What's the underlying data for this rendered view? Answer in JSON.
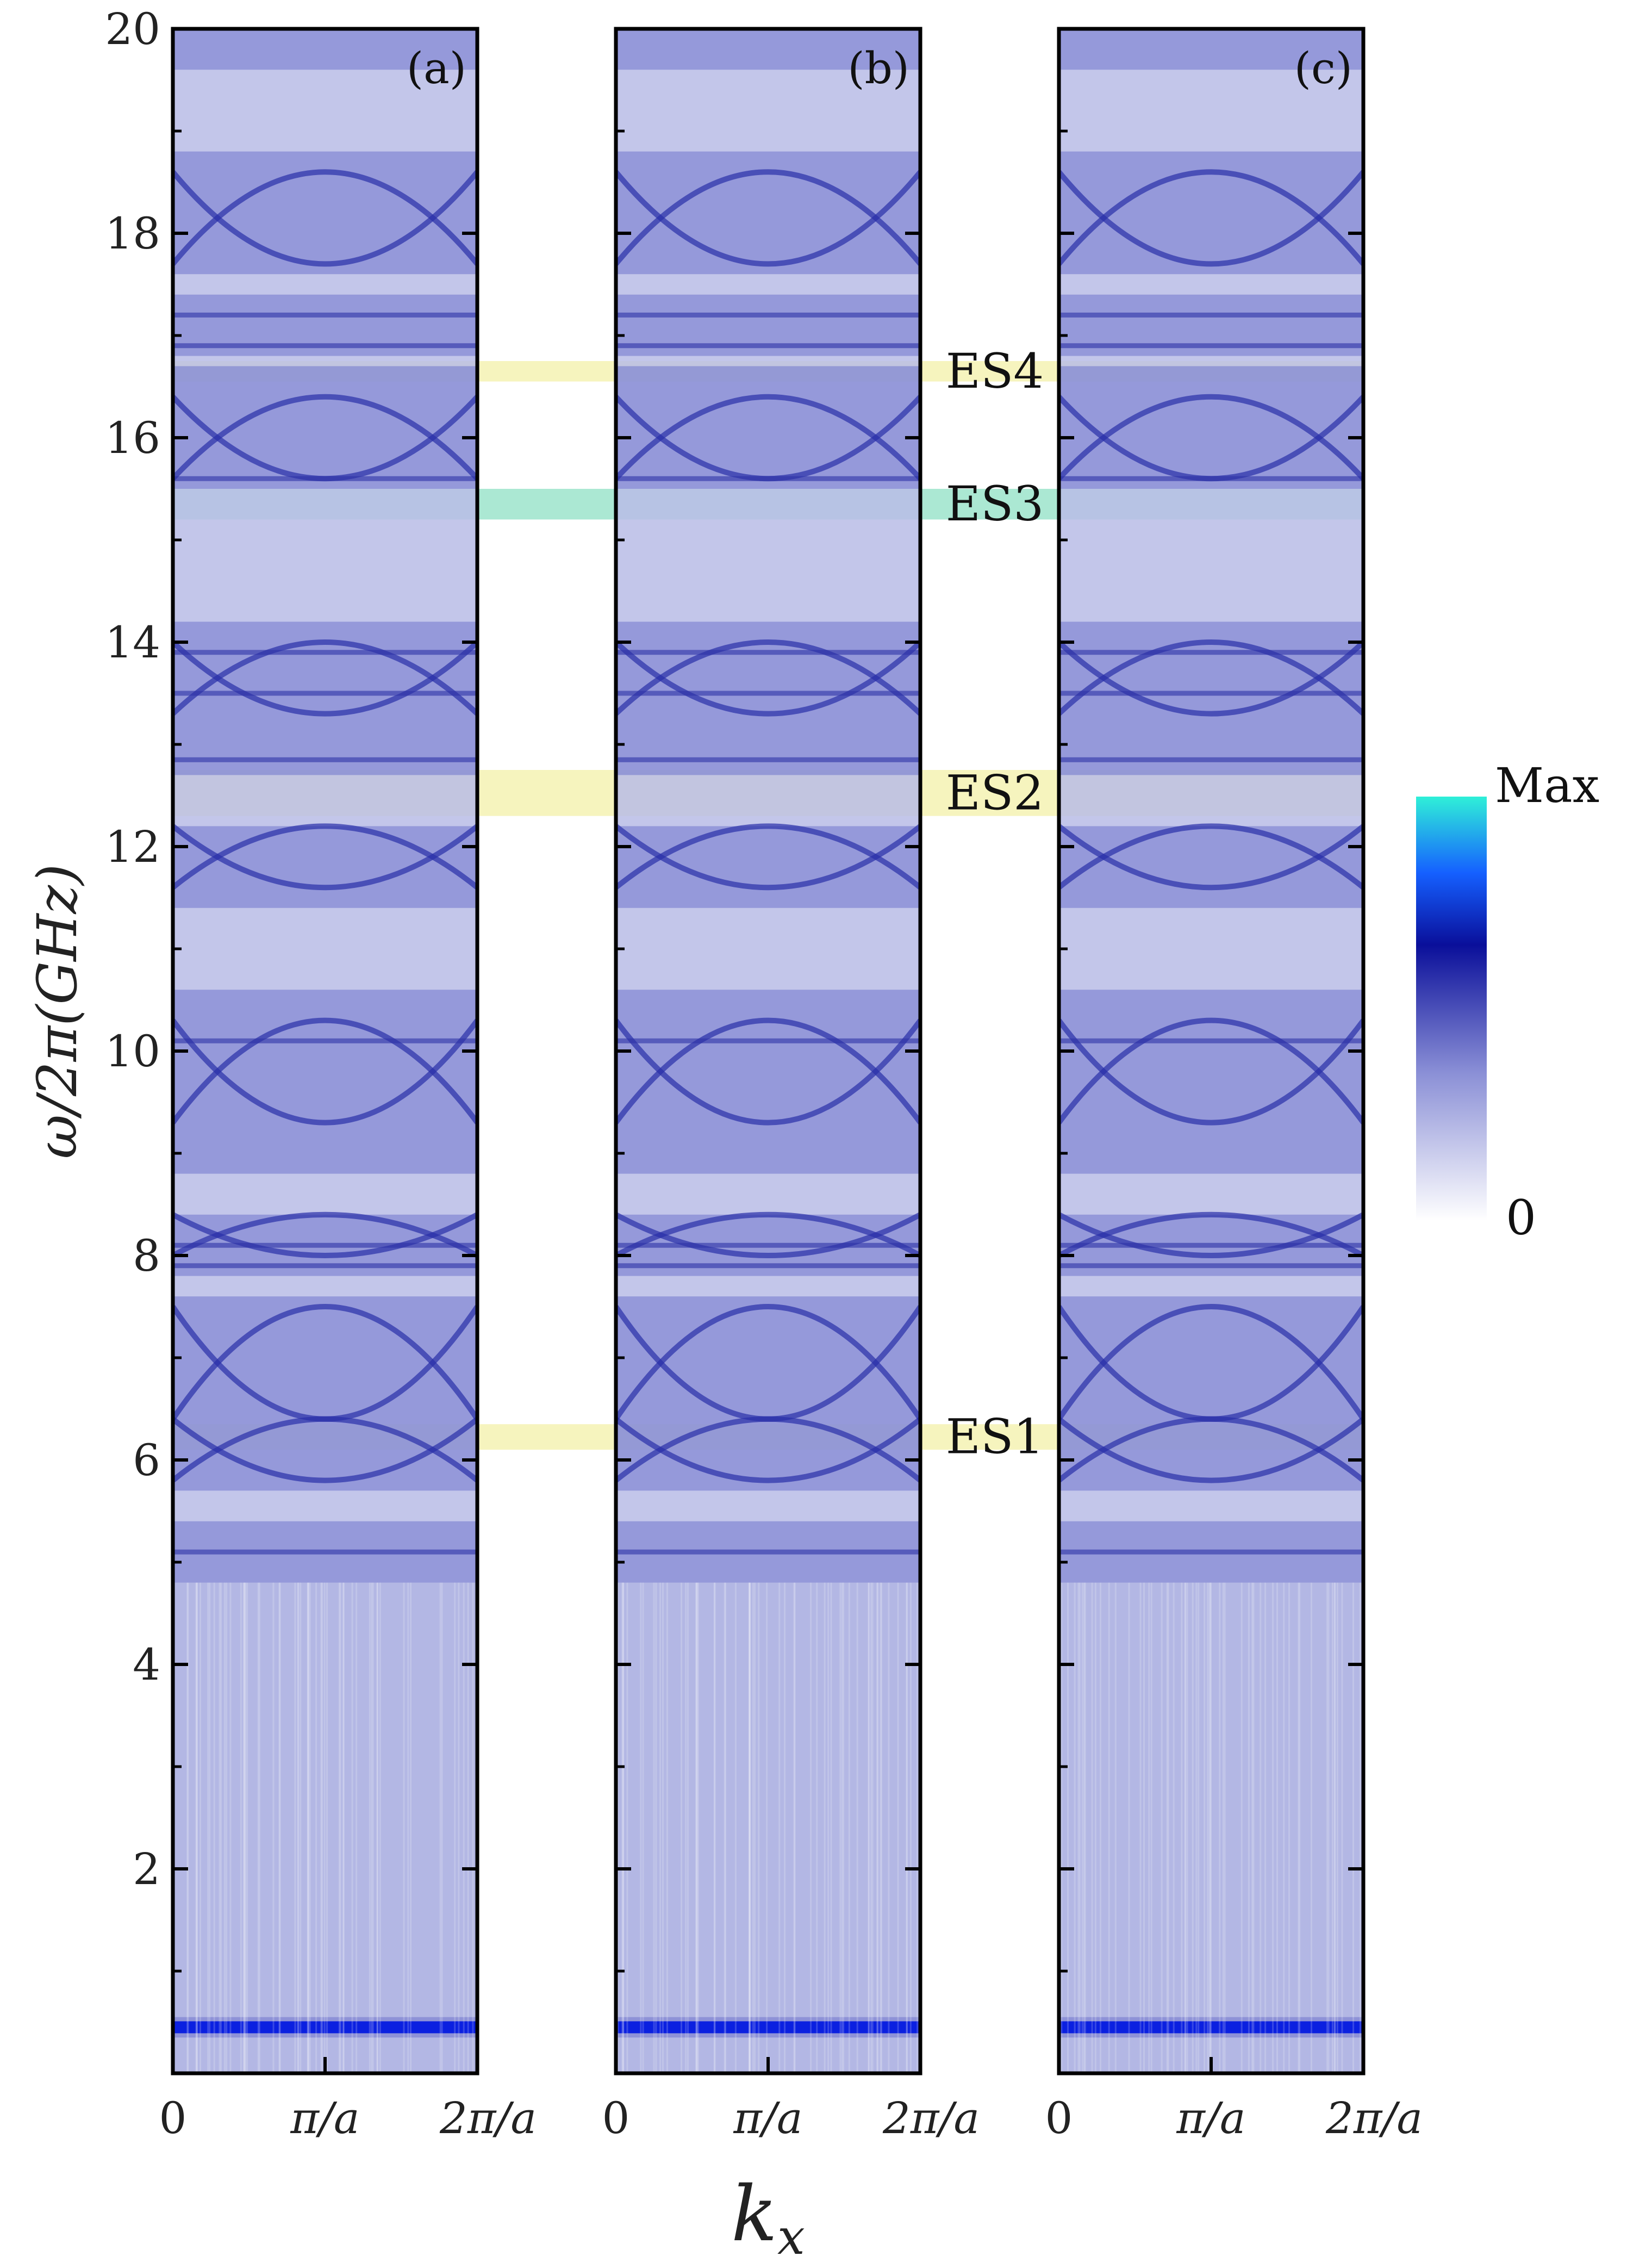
{
  "chart_data": {
    "type": "heatmap",
    "ylabel": "ω/2π(GHz)",
    "xlabel": "k_x",
    "ylim": [
      0,
      20
    ],
    "y_ticks": [
      "2",
      "4",
      "6",
      "8",
      "10",
      "12",
      "14",
      "16",
      "18",
      "20"
    ],
    "x_tick_labels": [
      "0",
      "π/a",
      "2π/a"
    ],
    "panels": [
      "(a)",
      "(b)",
      "(c)"
    ],
    "colorbar": {
      "max_label": "Max",
      "min_label": "0",
      "colors": [
        "#ffffff",
        "#8a8fd6",
        "#0a0f9a",
        "#1560ff",
        "#2ff0d8"
      ]
    },
    "highlight_bands": [
      {
        "label": "ES4",
        "range": [
          16.55,
          16.75
        ],
        "color": "#f3f0a8"
      },
      {
        "label": "ES3",
        "range": [
          15.2,
          15.5
        ],
        "color": "#8fe0c4"
      },
      {
        "label": "ES2",
        "range": [
          12.3,
          12.75
        ],
        "color": "#f3f0a8"
      },
      {
        "label": "ES1",
        "range": [
          6.1,
          6.35
        ],
        "color": "#f3f0a8"
      }
    ],
    "dense_regions_ghz": [
      [
        0.35,
        0.55
      ],
      [
        4.8,
        5.4
      ],
      [
        5.7,
        7.6
      ],
      [
        7.8,
        8.4
      ],
      [
        8.8,
        10.6
      ],
      [
        11.4,
        12.2
      ],
      [
        12.7,
        14.2
      ],
      [
        15.5,
        16.7
      ],
      [
        16.8,
        17.4
      ],
      [
        17.6,
        18.8
      ],
      [
        19.6,
        20.0
      ]
    ]
  }
}
